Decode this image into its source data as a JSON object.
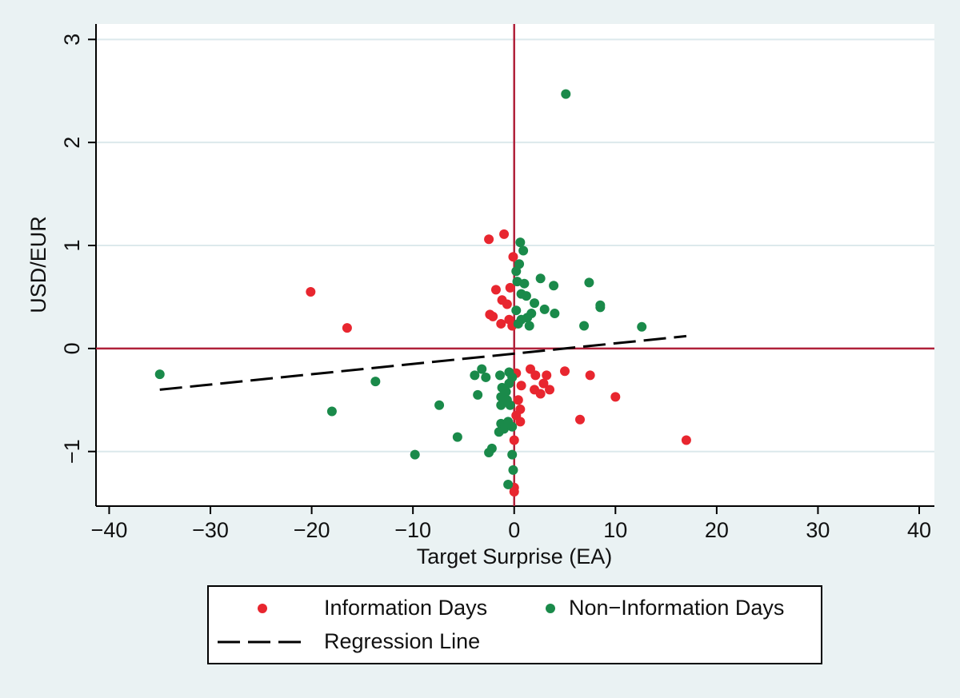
{
  "chart_data": {
    "type": "scatter",
    "x_label": "Target Surprise (EA)",
    "y_label": "USD/EUR",
    "xlim": [
      -41.3,
      41.5
    ],
    "ylim": [
      -1.53,
      3.15
    ],
    "xticks": [
      {
        "value": -40,
        "label": "−40"
      },
      {
        "value": -30,
        "label": "−30"
      },
      {
        "value": -20,
        "label": "−20"
      },
      {
        "value": -10,
        "label": "−10"
      },
      0,
      10,
      20,
      30,
      40
    ],
    "yticks": [
      {
        "value": -1,
        "label": "−1"
      },
      0,
      1,
      2,
      3
    ],
    "grid": true,
    "hlines": [
      0
    ],
    "vlines": [
      0
    ],
    "line_color": "#b0213a",
    "series": [
      {
        "name": "Information Days",
        "color": "#e8262f",
        "x": [
          -2.5,
          -1.0,
          -0.1,
          -20.1,
          -16.5,
          -1.8,
          -0.4,
          -1.2,
          -0.7,
          -2.4,
          -2.1,
          -1.3,
          -0.5,
          -0.2,
          0.2,
          1.6,
          2.1,
          3.2,
          5.0,
          7.5,
          2.0,
          2.6,
          3.5,
          2.9,
          0.7,
          0.4,
          0.6,
          0.2,
          0.6,
          6.5,
          10.0,
          17.0,
          0.0,
          0.0,
          0.0
        ],
        "values": [
          1.06,
          1.11,
          0.89,
          0.55,
          0.2,
          0.57,
          0.59,
          0.47,
          0.43,
          0.33,
          0.31,
          0.24,
          0.28,
          0.22,
          -0.24,
          -0.2,
          -0.26,
          -0.26,
          -0.22,
          -0.26,
          -0.4,
          -0.44,
          -0.4,
          -0.34,
          -0.36,
          -0.5,
          -0.59,
          -0.65,
          -0.71,
          -0.69,
          -0.47,
          -0.89,
          -0.89,
          -1.35,
          -1.39
        ]
      },
      {
        "name": "Non−Information Days",
        "color": "#1a8a4a",
        "x": [
          5.1,
          0.6,
          0.9,
          0.5,
          0.2,
          1.0,
          0.3,
          2.6,
          3.9,
          7.4,
          0.7,
          1.2,
          2.0,
          8.5,
          8.5,
          3.0,
          4.0,
          1.7,
          0.2,
          0.7,
          1.3,
          0.4,
          1.5,
          6.9,
          12.6,
          -35.0,
          -13.7,
          -18.0,
          -7.4,
          -9.8,
          -5.6,
          -3.9,
          -3.2,
          -2.8,
          -3.6,
          -1.4,
          -0.5,
          -0.2,
          -1.2,
          -0.8,
          -0.5,
          -1.3,
          -1.3,
          -0.7,
          -0.4,
          -1.3,
          -1.0,
          -1.5,
          -0.6,
          -0.2,
          -2.2,
          -2.5,
          -0.2,
          -0.1,
          -0.6
        ],
        "values": [
          2.47,
          1.03,
          0.95,
          0.82,
          0.75,
          0.63,
          0.65,
          0.68,
          0.61,
          0.64,
          0.53,
          0.51,
          0.44,
          0.42,
          0.4,
          0.38,
          0.34,
          0.34,
          0.37,
          0.28,
          0.3,
          0.24,
          0.22,
          0.22,
          0.21,
          -0.25,
          -0.32,
          -0.61,
          -0.55,
          -1.03,
          -0.86,
          -0.26,
          -0.2,
          -0.28,
          -0.45,
          -0.26,
          -0.23,
          -0.28,
          -0.38,
          -0.42,
          -0.34,
          -0.47,
          -0.55,
          -0.5,
          -0.55,
          -0.73,
          -0.78,
          -0.81,
          -0.71,
          -0.76,
          -0.97,
          -1.01,
          -1.03,
          -1.18,
          -1.32
        ]
      }
    ],
    "regression": {
      "name": "Regression Line",
      "color": "#000000",
      "x": [
        -35,
        17
      ],
      "values": [
        -0.4,
        0.12
      ]
    }
  }
}
